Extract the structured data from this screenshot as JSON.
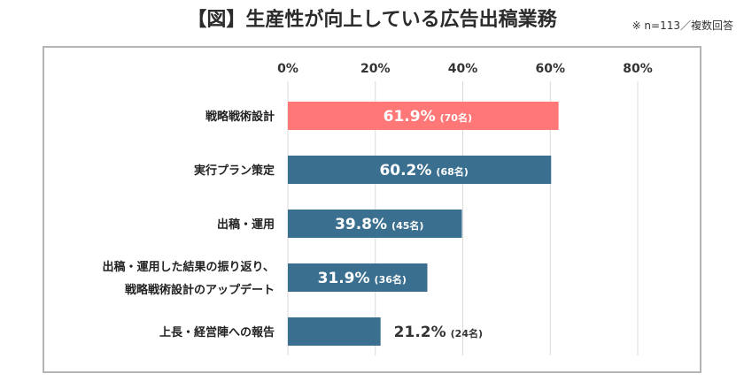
{
  "title": "【図】生産性が向上している広告出稿業務",
  "note": "※ n=113／複数回答",
  "colors": {
    "highlight": "#ff7777",
    "bar": "#3a6f8f",
    "grid": "#d9d9d9",
    "frame": "#b5b5b5"
  },
  "chart_data": {
    "type": "bar",
    "orientation": "horizontal",
    "title": "【図】生産性が向上している広告出稿業務",
    "xlim": [
      0,
      80
    ],
    "ticks": [
      "0%",
      "20%",
      "40%",
      "60%",
      "80%"
    ],
    "tick_values": [
      0,
      20,
      40,
      60,
      80
    ],
    "grid": true,
    "categories": [
      [
        "戦略戦術設計"
      ],
      [
        "実行プラン策定"
      ],
      [
        "出稿・運用"
      ],
      [
        "出稿・運用した結果の振り返り、",
        "戦略戦術設計のアップデート"
      ],
      [
        "上長・経営陣への報告"
      ]
    ],
    "values": [
      61.9,
      60.2,
      39.8,
      31.9,
      21.2
    ],
    "value_labels": [
      "61.9%",
      "60.2%",
      "39.8%",
      "31.9%",
      "21.2%"
    ],
    "count_labels": [
      "(70名)",
      "(68名)",
      "(45名)",
      "(36名)",
      "(24名)"
    ],
    "highlight_index": 0
  }
}
